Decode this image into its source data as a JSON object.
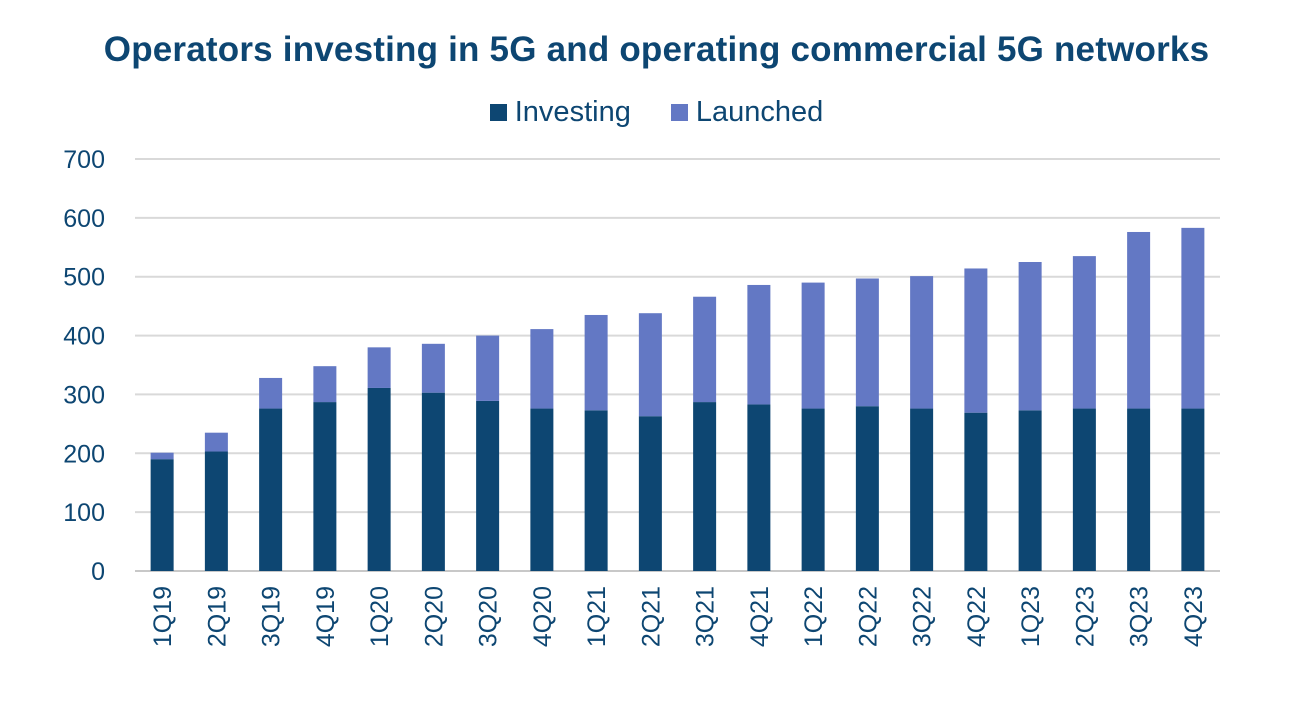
{
  "chart_data": {
    "type": "bar",
    "stacked": true,
    "title": "Operators investing in 5G and operating commercial 5G networks",
    "xlabel": "",
    "ylabel": "",
    "ylim": [
      0,
      700
    ],
    "yticks": [
      0,
      100,
      200,
      300,
      400,
      500,
      600,
      700
    ],
    "grid": true,
    "legend_position": "top-center",
    "categories": [
      "1Q19",
      "2Q19",
      "3Q19",
      "4Q19",
      "1Q20",
      "2Q20",
      "3Q20",
      "4Q20",
      "1Q21",
      "2Q21",
      "3Q21",
      "4Q21",
      "1Q22",
      "2Q22",
      "3Q22",
      "4Q22",
      "1Q23",
      "2Q23",
      "3Q23",
      "4Q23"
    ],
    "series": [
      {
        "name": "Investing",
        "color": "#0d4672",
        "values": [
          190,
          203,
          276,
          287,
          311,
          303,
          289,
          276,
          273,
          263,
          287,
          283,
          276,
          280,
          276,
          269,
          273,
          276,
          276,
          276
        ]
      },
      {
        "name": "Launched",
        "color": "#6378c4",
        "values": [
          11,
          32,
          52,
          61,
          69,
          83,
          111,
          135,
          162,
          175,
          179,
          203,
          214,
          217,
          225,
          245,
          252,
          259,
          300,
          307
        ]
      }
    ]
  }
}
